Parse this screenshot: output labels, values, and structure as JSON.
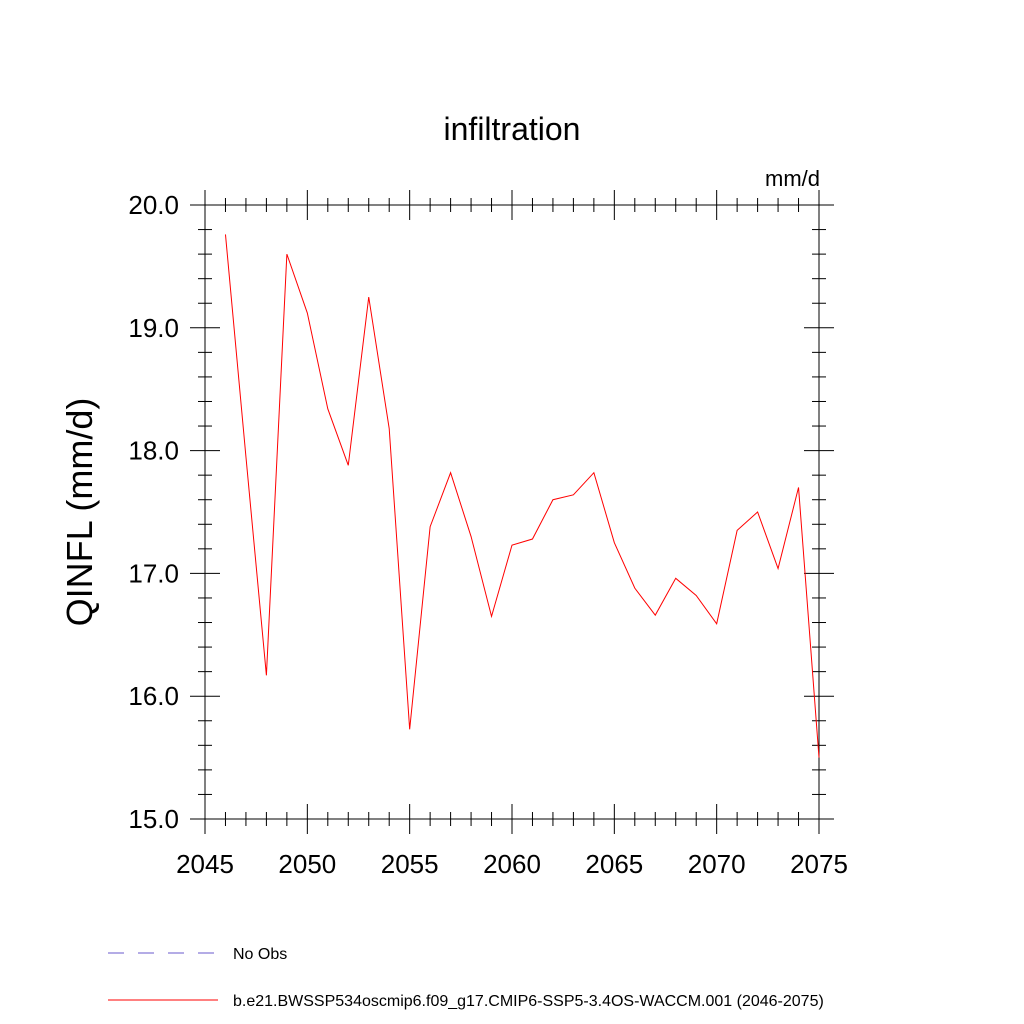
{
  "chart_data": {
    "type": "line",
    "title": "infiltration",
    "units_label": "mm/d",
    "ylabel": "QINFL  (mm/d)",
    "xlabel": "",
    "xlim": [
      2045,
      2075
    ],
    "ylim": [
      15.0,
      20.0
    ],
    "x_ticks": [
      2045,
      2050,
      2055,
      2060,
      2065,
      2070,
      2075
    ],
    "x_tick_labels": [
      "2045",
      "2050",
      "2055",
      "2060",
      "2065",
      "2070",
      "2075"
    ],
    "y_ticks": [
      15.0,
      16.0,
      17.0,
      18.0,
      19.0,
      20.0
    ],
    "y_tick_labels": [
      "15.0",
      "16.0",
      "17.0",
      "18.0",
      "19.0",
      "20.0"
    ],
    "series": [
      {
        "name": "b.e21.BWSSP534oscmip6.f09_g17.CMIP6-SSP5-3.4OS-WACCM.001 (2046-2075)",
        "color": "#ff0000",
        "style": "solid",
        "x": [
          2046,
          2047,
          2048,
          2049,
          2050,
          2051,
          2052,
          2053,
          2054,
          2055,
          2056,
          2057,
          2058,
          2059,
          2060,
          2061,
          2062,
          2063,
          2064,
          2065,
          2066,
          2067,
          2068,
          2069,
          2070,
          2071,
          2072,
          2073,
          2074,
          2075
        ],
        "values": [
          19.76,
          17.95,
          16.17,
          19.6,
          19.12,
          18.34,
          17.88,
          19.25,
          18.18,
          15.73,
          17.38,
          17.82,
          17.3,
          16.65,
          17.23,
          17.28,
          17.6,
          17.64,
          17.82,
          17.25,
          16.88,
          16.66,
          16.96,
          16.82,
          16.59,
          17.35,
          17.5,
          17.04,
          17.7,
          15.5
        ]
      }
    ],
    "legend": [
      {
        "label": "No Obs",
        "color": "#6a5acd",
        "style": "dashed"
      },
      {
        "label": "b.e21.BWSSP534oscmip6.f09_g17.CMIP6-SSP5-3.4OS-WACCM.001 (2046-2075)",
        "color": "#ff0000",
        "style": "solid"
      }
    ],
    "legend_position": "bottom-left"
  }
}
